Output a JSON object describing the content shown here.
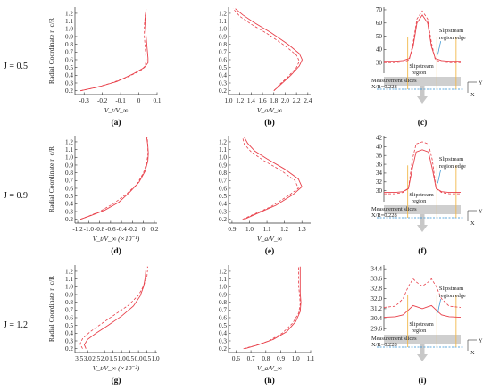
{
  "figure": {
    "rows": [
      {
        "label": "J = 0.5"
      },
      {
        "label": "J = 0.9"
      },
      {
        "label": "J = 1.2"
      }
    ],
    "ylabel": "Radial Coordinate r_c/R",
    "panel_labels": [
      "(a)",
      "(b)",
      "(c)",
      "(d)",
      "(e)",
      "(f)",
      "(g)",
      "(h)",
      "(i)"
    ],
    "annotations": {
      "slipstream_region": "Slipstream region",
      "slipstream_edge": "Slipstream region edge",
      "measurement_slices": "Measurement slices: X/R=0.228",
      "axis_y": "Y",
      "axis_x": "X"
    },
    "colors": {
      "line": "#e8404a",
      "slice": "#cfcfcf",
      "edge": "#f2b84b",
      "pointer": "#2e8fcf",
      "arrow": "#c8c8c8"
    }
  },
  "chart_data": [
    {
      "id": "a",
      "type": "line",
      "xlabel": "V_t/V_∞",
      "ylabel": "Radial Coordinate r_c/R",
      "xlim": [
        -0.35,
        0.1
      ],
      "ylim": [
        0.15,
        1.28
      ],
      "xticks": [
        -0.3,
        -0.2,
        -0.1,
        0.0,
        0.1
      ],
      "yticks": [
        0.2,
        0.3,
        0.4,
        0.5,
        0.6,
        0.7,
        0.8,
        0.9,
        1.0,
        1.1,
        1.2
      ],
      "series": [
        {
          "style": "solid",
          "x": [
            -0.32,
            -0.22,
            -0.12,
            -0.03,
            0.03,
            0.05,
            0.05,
            0.045,
            0.04,
            0.035,
            0.035,
            0.04
          ],
          "y": [
            0.2,
            0.25,
            0.32,
            0.42,
            0.5,
            0.56,
            0.62,
            0.75,
            0.9,
            1.05,
            1.17,
            1.25
          ]
        },
        {
          "style": "dash",
          "x": [
            -0.32,
            -0.24,
            -0.15,
            -0.06,
            0.01,
            0.035,
            0.04,
            0.035,
            0.03,
            0.03,
            0.035,
            0.04
          ],
          "y": [
            0.2,
            0.24,
            0.3,
            0.38,
            0.46,
            0.52,
            0.6,
            0.75,
            0.9,
            1.05,
            1.17,
            1.25
          ]
        }
      ]
    },
    {
      "id": "b",
      "type": "line",
      "xlabel": "V_a/V_∞",
      "ylabel": "",
      "xlim": [
        1.0,
        2.45
      ],
      "ylim": [
        0.15,
        1.28
      ],
      "xticks": [
        1.0,
        1.2,
        1.4,
        1.6,
        1.8,
        2.0,
        2.2,
        2.4
      ],
      "yticks": [
        0.2,
        0.3,
        0.4,
        0.5,
        0.6,
        0.7,
        0.8,
        0.9,
        1.0,
        1.1,
        1.2
      ],
      "series": [
        {
          "style": "solid",
          "x": [
            1.8,
            1.95,
            2.1,
            2.25,
            2.3,
            2.25,
            2.05,
            1.75,
            1.45,
            1.25,
            1.12
          ],
          "y": [
            0.2,
            0.3,
            0.4,
            0.52,
            0.6,
            0.68,
            0.8,
            0.95,
            1.08,
            1.18,
            1.26
          ]
        },
        {
          "style": "dash",
          "x": [
            1.8,
            1.9,
            2.05,
            2.2,
            2.25,
            2.2,
            2.0,
            1.7,
            1.4,
            1.2,
            1.08
          ],
          "y": [
            0.2,
            0.28,
            0.38,
            0.5,
            0.58,
            0.66,
            0.78,
            0.93,
            1.06,
            1.16,
            1.26
          ]
        }
      ]
    },
    {
      "id": "c",
      "type": "line",
      "xlabel": "",
      "ylabel": "",
      "ylim": [
        22,
        72
      ],
      "yticks": [
        30,
        40,
        50,
        60,
        70
      ],
      "xlim": [
        0,
        1
      ],
      "series": [
        {
          "style": "solid",
          "x": [
            0,
            0.15,
            0.25,
            0.33,
            0.38,
            0.43,
            0.5,
            0.57,
            0.62,
            0.67,
            0.75,
            0.85,
            1.0
          ],
          "y": [
            31,
            31,
            31.5,
            33,
            42,
            60,
            66,
            60,
            42,
            33,
            31.5,
            31,
            31
          ]
        },
        {
          "style": "dash",
          "x": [
            0,
            0.15,
            0.25,
            0.33,
            0.38,
            0.43,
            0.5,
            0.57,
            0.62,
            0.67,
            0.75,
            0.85,
            1.0
          ],
          "y": [
            30,
            30,
            30.5,
            32,
            45,
            63,
            69,
            63,
            45,
            32,
            30.5,
            30,
            30
          ]
        }
      ]
    },
    {
      "id": "d",
      "type": "line",
      "xlabel": "V_t/V_∞ (×10⁻¹)",
      "ylabel": "Radial Coordinate r_c/R",
      "xlim": [
        -1.25,
        0.25
      ],
      "ylim": [
        0.15,
        1.28
      ],
      "xticks": [
        -1.2,
        -1.0,
        -0.8,
        -0.6,
        -0.4,
        -0.2,
        0.0,
        0.2
      ],
      "yticks": [
        0.2,
        0.3,
        0.4,
        0.5,
        0.6,
        0.7,
        0.8,
        0.9,
        1.0,
        1.1,
        1.2
      ],
      "series": [
        {
          "style": "solid",
          "x": [
            -1.15,
            -0.95,
            -0.7,
            -0.45,
            -0.25,
            -0.08,
            0.03,
            0.08,
            0.09,
            0.08,
            0.06
          ],
          "y": [
            0.2,
            0.25,
            0.32,
            0.42,
            0.55,
            0.68,
            0.82,
            0.95,
            1.05,
            1.15,
            1.26
          ]
        },
        {
          "style": "dash",
          "x": [
            -1.15,
            -1.0,
            -0.8,
            -0.55,
            -0.32,
            -0.12,
            0.0,
            0.06,
            0.08,
            0.08,
            0.07
          ],
          "y": [
            0.2,
            0.24,
            0.3,
            0.4,
            0.52,
            0.65,
            0.8,
            0.93,
            1.03,
            1.14,
            1.26
          ]
        }
      ]
    },
    {
      "id": "e",
      "type": "line",
      "xlabel": "V_a/V_∞",
      "ylabel": "",
      "xlim": [
        0.88,
        1.35
      ],
      "ylim": [
        0.15,
        1.28
      ],
      "xticks": [
        0.9,
        1.0,
        1.1,
        1.2,
        1.3
      ],
      "yticks": [
        0.2,
        0.3,
        0.4,
        0.5,
        0.6,
        0.7,
        0.8,
        0.9,
        1.0,
        1.1,
        1.2
      ],
      "series": [
        {
          "style": "solid",
          "x": [
            0.97,
            1.05,
            1.15,
            1.25,
            1.3,
            1.28,
            1.2,
            1.1,
            1.03,
            0.99,
            0.97
          ],
          "y": [
            0.2,
            0.28,
            0.38,
            0.52,
            0.62,
            0.72,
            0.85,
            0.98,
            1.08,
            1.18,
            1.26
          ]
        },
        {
          "style": "dash",
          "x": [
            0.96,
            1.03,
            1.12,
            1.22,
            1.28,
            1.26,
            1.18,
            1.08,
            1.01,
            0.97,
            0.96
          ],
          "y": [
            0.2,
            0.27,
            0.36,
            0.5,
            0.6,
            0.7,
            0.83,
            0.96,
            1.07,
            1.17,
            1.26
          ]
        }
      ]
    },
    {
      "id": "f",
      "type": "line",
      "xlabel": "",
      "ylabel": "",
      "ylim": [
        27.5,
        42.5
      ],
      "yticks": [
        30,
        32,
        34,
        36,
        38,
        40,
        42
      ],
      "xlim": [
        0,
        1
      ],
      "series": [
        {
          "style": "solid",
          "x": [
            0,
            0.15,
            0.25,
            0.32,
            0.37,
            0.42,
            0.5,
            0.58,
            0.63,
            0.68,
            0.75,
            0.85,
            1.0
          ],
          "y": [
            29.6,
            29.6,
            29.8,
            30.5,
            35,
            38.8,
            39.3,
            38.8,
            35,
            30.5,
            29.8,
            29.6,
            29.6
          ]
        },
        {
          "style": "dash",
          "x": [
            0,
            0.15,
            0.25,
            0.32,
            0.37,
            0.42,
            0.5,
            0.58,
            0.63,
            0.68,
            0.75,
            0.85,
            1.0
          ],
          "y": [
            29.3,
            29.3,
            29.6,
            30.5,
            37,
            40.6,
            41.1,
            40.6,
            37,
            30.5,
            29.6,
            29.3,
            29.3
          ]
        }
      ]
    },
    {
      "id": "g",
      "type": "line",
      "xlabel": "V_t/V_∞ (×10⁻²)",
      "ylabel": "Radial Coordinate r_c/R",
      "xlim": [
        -3.75,
        1.1
      ],
      "ylim": [
        0.15,
        1.28
      ],
      "xticks": [
        -3.5,
        -3.0,
        -2.5,
        -2.0,
        -1.5,
        -1.0,
        -0.5,
        0.0,
        0.5,
        1.0
      ],
      "xticklabels": [
        "3.5",
        "3.0",
        "2.5",
        "2.0",
        "1.5",
        "1.0",
        "0.5",
        "0.0",
        "0.5",
        "1.0"
      ],
      "yticks": [
        0.2,
        0.3,
        0.4,
        0.5,
        0.6,
        0.7,
        0.8,
        0.9,
        1.0,
        1.1,
        1.2
      ],
      "series": [
        {
          "style": "solid",
          "x": [
            -3.1,
            -3.2,
            -3.0,
            -2.5,
            -1.8,
            -1.0,
            -0.3,
            0.1,
            0.3,
            0.4,
            0.45
          ],
          "y": [
            0.2,
            0.25,
            0.32,
            0.4,
            0.5,
            0.62,
            0.75,
            0.88,
            1.0,
            1.12,
            1.26
          ]
        },
        {
          "style": "dash",
          "x": [
            -3.3,
            -3.45,
            -3.3,
            -2.85,
            -2.2,
            -1.4,
            -0.6,
            0.0,
            0.3,
            0.5,
            0.55
          ],
          "y": [
            0.2,
            0.26,
            0.33,
            0.42,
            0.52,
            0.64,
            0.76,
            0.89,
            1.01,
            1.13,
            1.26
          ]
        }
      ]
    },
    {
      "id": "h",
      "type": "line",
      "xlabel": "V_a/V_∞",
      "ylabel": "",
      "xlim": [
        0.55,
        1.1
      ],
      "ylim": [
        0.15,
        1.28
      ],
      "xticks": [
        0.6,
        0.7,
        0.8,
        0.9,
        1.0,
        1.1
      ],
      "yticks": [
        0.2,
        0.3,
        0.4,
        0.5,
        0.6,
        0.7,
        0.8,
        0.9,
        1.0,
        1.1,
        1.2
      ],
      "series": [
        {
          "style": "solid",
          "x": [
            0.66,
            0.75,
            0.85,
            0.94,
            1.0,
            1.03,
            1.035,
            1.03,
            1.03,
            1.03,
            1.03
          ],
          "y": [
            0.2,
            0.25,
            0.32,
            0.42,
            0.55,
            0.68,
            0.8,
            0.92,
            1.02,
            1.14,
            1.26
          ]
        },
        {
          "style": "dash",
          "x": [
            0.65,
            0.73,
            0.82,
            0.91,
            0.98,
            1.02,
            1.03,
            1.025,
            1.02,
            1.02,
            1.02
          ],
          "y": [
            0.2,
            0.24,
            0.3,
            0.4,
            0.53,
            0.66,
            0.78,
            0.9,
            1.0,
            1.12,
            1.26
          ]
        }
      ]
    },
    {
      "id": "i",
      "type": "line",
      "xlabel": "",
      "ylabel": "",
      "ylim": [
        29.4,
        34.7
      ],
      "yticks": [
        29.6,
        30.4,
        31.2,
        32.0,
        32.8,
        33.6,
        34.4
      ],
      "yticklabels": [
        "29.6",
        "30.4",
        "31.2",
        "32.0",
        "32.8",
        "33.6",
        "34.4"
      ],
      "xlim": [
        0,
        1
      ],
      "series": [
        {
          "style": "solid",
          "x": [
            0,
            0.15,
            0.25,
            0.32,
            0.38,
            0.43,
            0.5,
            0.57,
            0.62,
            0.68,
            0.75,
            0.85,
            1.0
          ],
          "y": [
            30.5,
            30.55,
            30.7,
            31.1,
            31.45,
            31.35,
            31.2,
            31.35,
            31.45,
            31.1,
            30.7,
            30.55,
            30.5
          ]
        },
        {
          "style": "dash",
          "x": [
            0,
            0.15,
            0.25,
            0.32,
            0.38,
            0.43,
            0.5,
            0.57,
            0.62,
            0.68,
            0.75,
            0.85,
            1.0
          ],
          "y": [
            31.3,
            31.4,
            32.0,
            33.0,
            33.6,
            33.3,
            33.0,
            33.3,
            33.6,
            33.0,
            32.0,
            31.4,
            31.3
          ]
        }
      ]
    }
  ]
}
